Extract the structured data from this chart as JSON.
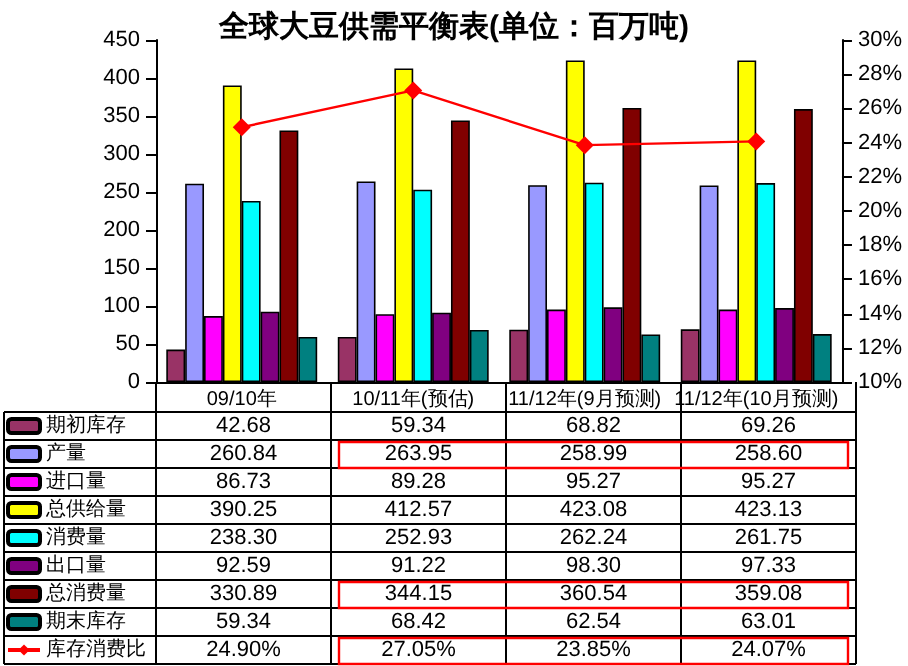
{
  "chart_data": {
    "type": "bar",
    "title": "全球大豆供需平衡表(单位：百万吨)",
    "categories": [
      "09/10年",
      "10/11年(预估)",
      "11/12年(9月预测)",
      "11/12年(10月预测)"
    ],
    "series": [
      {
        "name": "期初库存",
        "color": "#993366",
        "values": [
          42.68,
          59.34,
          68.82,
          69.26
        ],
        "value_labels": [
          "42.68",
          "59.34",
          "68.82",
          "69.26"
        ]
      },
      {
        "name": "产量",
        "color": "#9999ff",
        "values": [
          260.84,
          263.95,
          258.99,
          258.6
        ],
        "value_labels": [
          "260.84",
          "263.95",
          "258.99",
          "258.60"
        ]
      },
      {
        "name": "进口量",
        "color": "#ff00ff",
        "values": [
          86.73,
          89.28,
          95.27,
          95.27
        ],
        "value_labels": [
          "86.73",
          "89.28",
          "95.27",
          "95.27"
        ]
      },
      {
        "name": "总供给量",
        "color": "#ffff00",
        "values": [
          390.25,
          412.57,
          423.08,
          423.13
        ],
        "value_labels": [
          "390.25",
          "412.57",
          "423.08",
          "423.13"
        ]
      },
      {
        "name": "消费量",
        "color": "#00ffff",
        "values": [
          238.3,
          252.93,
          262.24,
          261.75
        ],
        "value_labels": [
          "238.30",
          "252.93",
          "262.24",
          "261.75"
        ]
      },
      {
        "name": "出口量",
        "color": "#800080",
        "values": [
          92.59,
          91.22,
          98.3,
          97.33
        ],
        "value_labels": [
          "92.59",
          "91.22",
          "98.30",
          "97.33"
        ]
      },
      {
        "name": "总消费量",
        "color": "#800000",
        "values": [
          330.89,
          344.15,
          360.54,
          359.08
        ],
        "value_labels": [
          "330.89",
          "344.15",
          "360.54",
          "359.08"
        ]
      },
      {
        "name": "期末库存",
        "color": "#008080",
        "values": [
          59.34,
          68.42,
          62.54,
          63.01
        ],
        "value_labels": [
          "59.34",
          "68.42",
          "62.54",
          "63.01"
        ]
      },
      {
        "name": "库存消费比",
        "type": "line",
        "axis": "y2",
        "color": "#ff0000",
        "marker": "diamond",
        "values": [
          24.9,
          27.05,
          23.85,
          24.07
        ],
        "value_labels": [
          "24.90%",
          "27.05%",
          "23.85%",
          "24.07%"
        ]
      }
    ],
    "ylim": [
      0,
      450
    ],
    "yticks": [
      0,
      50,
      100,
      150,
      200,
      250,
      300,
      350,
      400,
      450
    ],
    "y2lim": [
      10,
      30
    ],
    "y2ticks": [
      {
        "value": 10,
        "label": "10%"
      },
      {
        "value": 12,
        "label": "12%"
      },
      {
        "value": 14,
        "label": "14%"
      },
      {
        "value": 16,
        "label": "16%"
      },
      {
        "value": 18,
        "label": "18%"
      },
      {
        "value": 20,
        "label": "20%"
      },
      {
        "value": 22,
        "label": "22%"
      },
      {
        "value": 24,
        "label": "24%"
      },
      {
        "value": 26,
        "label": "26%"
      },
      {
        "value": 28,
        "label": "28%"
      },
      {
        "value": 30,
        "label": "30%"
      }
    ],
    "legend": "left",
    "grid": false
  }
}
